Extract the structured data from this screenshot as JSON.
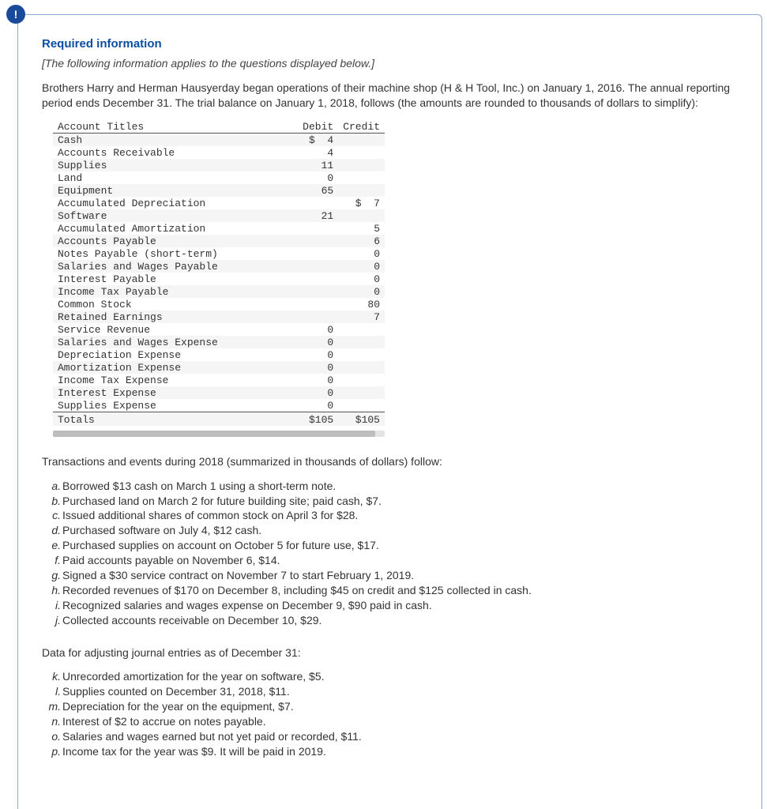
{
  "badge_text": "!",
  "heading": "Required information",
  "subnote": "[The following information applies to the questions displayed below.]",
  "intro": "Brothers Harry and Herman Hausyerday began operations of their machine shop (H & H Tool, Inc.) on January 1, 2016. The annual reporting period ends December 31. The trial balance on January 1, 2018, follows (the amounts are rounded to thousands of dollars to simplify):",
  "tb": {
    "head_title": "Account Titles",
    "head_debit": "Debit",
    "head_credit": "Credit",
    "currency": "$",
    "rows": [
      {
        "t": "Cash",
        "d": "4",
        "c": "",
        "ds": "$"
      },
      {
        "t": "Accounts Receivable",
        "d": "4",
        "c": ""
      },
      {
        "t": "Supplies",
        "d": "11",
        "c": ""
      },
      {
        "t": "Land",
        "d": "0",
        "c": ""
      },
      {
        "t": "Equipment",
        "d": "65",
        "c": ""
      },
      {
        "t": "Accumulated Depreciation",
        "d": "",
        "c": "7",
        "cs": "$"
      },
      {
        "t": "Software",
        "d": "21",
        "c": ""
      },
      {
        "t": "Accumulated Amortization",
        "d": "",
        "c": "5"
      },
      {
        "t": "Accounts Payable",
        "d": "",
        "c": "6"
      },
      {
        "t": "Notes Payable (short-term)",
        "d": "",
        "c": "0"
      },
      {
        "t": "Salaries and Wages Payable",
        "d": "",
        "c": "0"
      },
      {
        "t": "Interest Payable",
        "d": "",
        "c": "0"
      },
      {
        "t": "Income Tax Payable",
        "d": "",
        "c": "0"
      },
      {
        "t": "Common Stock",
        "d": "",
        "c": "80"
      },
      {
        "t": "Retained Earnings",
        "d": "",
        "c": "7"
      },
      {
        "t": "Service Revenue",
        "d": "0",
        "c": ""
      },
      {
        "t": "Salaries and Wages Expense",
        "d": "0",
        "c": ""
      },
      {
        "t": "Depreciation Expense",
        "d": "0",
        "c": ""
      },
      {
        "t": "Amortization Expense",
        "d": "0",
        "c": ""
      },
      {
        "t": "Income Tax Expense",
        "d": "0",
        "c": ""
      },
      {
        "t": "Interest Expense",
        "d": "0",
        "c": ""
      },
      {
        "t": "Supplies Expense",
        "d": "0",
        "c": ""
      }
    ],
    "totals_label": "Totals",
    "totals_debit": "$105",
    "totals_credit": "$105"
  },
  "tx_head": "Transactions and events during 2018 (summarized in thousands of dollars) follow:",
  "tx": [
    {
      "l": "a.",
      "t": "Borrowed $13 cash on March 1 using a short-term note."
    },
    {
      "l": "b.",
      "t": "Purchased land on March 2 for future building site; paid cash, $7."
    },
    {
      "l": "c.",
      "t": "Issued additional shares of common stock on April 3 for $28."
    },
    {
      "l": "d.",
      "t": "Purchased software on July 4, $12 cash."
    },
    {
      "l": "e.",
      "t": "Purchased supplies on account on October 5 for future use, $17."
    },
    {
      "l": "f.",
      "t": "Paid accounts payable on November 6, $14."
    },
    {
      "l": "g.",
      "t": "Signed a $30 service contract on November 7 to start February 1, 2019."
    },
    {
      "l": "h.",
      "t": "Recorded revenues of $170 on December 8, including $45 on credit and $125 collected in cash."
    },
    {
      "l": "i.",
      "t": "Recognized salaries and wages expense on December 9, $90 paid in cash."
    },
    {
      "l": "j.",
      "t": "Collected accounts receivable on December 10, $29."
    }
  ],
  "adj_head": "Data for adjusting journal entries as of December 31:",
  "adj": [
    {
      "l": "k.",
      "t": "Unrecorded amortization for the year on software, $5."
    },
    {
      "l": "l.",
      "t": "Supplies counted on December 31, 2018, $11."
    },
    {
      "l": "m.",
      "t": "Depreciation for the year on the equipment, $7."
    },
    {
      "l": "n.",
      "t": "Interest of $2 to accrue on notes payable."
    },
    {
      "l": "o.",
      "t": "Salaries and wages earned but not yet paid or recorded, $11."
    },
    {
      "l": "p.",
      "t": "Income tax for the year was $9. It will be paid in 2019."
    }
  ]
}
